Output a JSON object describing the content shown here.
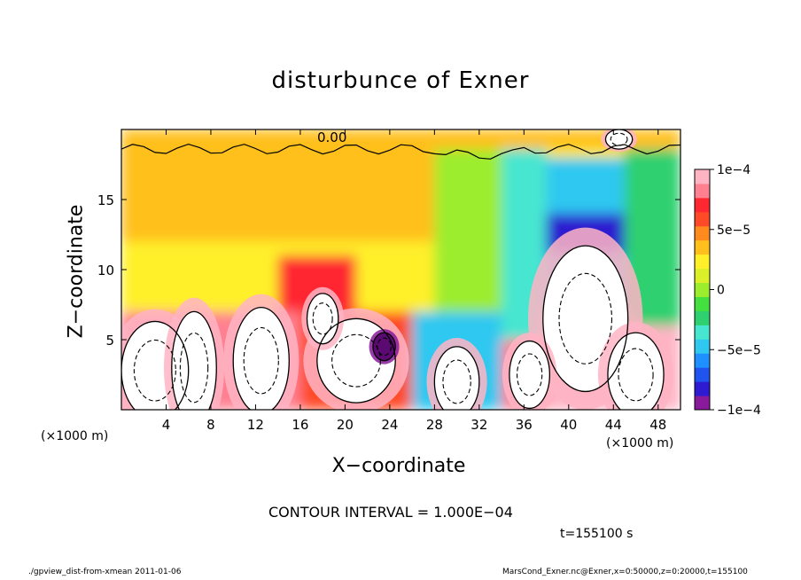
{
  "chart_data": {
    "type": "heatmap",
    "title": "disturbunce of Exner",
    "xlabel": "X−coordinate",
    "ylabel": "Z−coordinate",
    "x_unit_label": "(×1000 m)",
    "x_unit_label_right": "(×1000 m)",
    "xlim": [
      0,
      50
    ],
    "ylim": [
      0,
      20
    ],
    "x_ticks": [
      4,
      8,
      12,
      16,
      20,
      24,
      28,
      32,
      36,
      40,
      44,
      48
    ],
    "y_ticks": [
      5,
      10,
      15
    ],
    "colorbar": {
      "range": [
        -0.0001,
        0.0001
      ],
      "tick_values": [
        0.0001,
        5e-05,
        0,
        -5e-05,
        -0.0001
      ],
      "tick_labels": [
        "1e−4",
        "5e−5",
        "0",
        "−5e−5",
        "−1e−4"
      ],
      "colors": [
        "#8a1a9c",
        "#2e1ad0",
        "#1f55ee",
        "#1e90ff",
        "#2fc8f0",
        "#46e6d0",
        "#2fd070",
        "#43e040",
        "#9ced2e",
        "#dcf02a",
        "#fff02a",
        "#ffc01e",
        "#ff8a1e",
        "#ff4a28",
        "#ff2830",
        "#ff8090",
        "#ffb4c4"
      ]
    },
    "contour_interval": "CONTOUR INTERVAL = 1.000E−04",
    "contour_label": "0.00",
    "time": "t=155100 s",
    "cells": [
      {
        "x": [
          0,
          50
        ],
        "z": [
          18.6,
          20
        ],
        "v": 4e-05
      },
      {
        "x": [
          0,
          50
        ],
        "z": [
          0,
          18.6
        ],
        "v": 2e-05
      },
      {
        "x": [
          0,
          28
        ],
        "z": [
          12,
          18.6
        ],
        "v": 3e-05
      },
      {
        "x": [
          28,
          34
        ],
        "z": [
          0,
          18.6
        ],
        "v": 0.0
      },
      {
        "x": [
          34,
          38
        ],
        "z": [
          0,
          18.6
        ],
        "v": -3e-05
      },
      {
        "x": [
          38,
          45
        ],
        "z": [
          7,
          18
        ],
        "v": -5e-05
      },
      {
        "x": [
          45,
          50
        ],
        "z": [
          0,
          18.6
        ],
        "v": -2e-05
      },
      {
        "x": [
          38,
          45
        ],
        "z": [
          11,
          14
        ],
        "v": -8e-05
      },
      {
        "x": [
          20,
          25
        ],
        "z": [
          12,
          17
        ],
        "v": 3e-05
      },
      {
        "x": [
          14,
          21
        ],
        "z": [
          7,
          11
        ],
        "v": 7e-05
      },
      {
        "x": [
          0,
          14
        ],
        "z": [
          6,
          12
        ],
        "v": 2e-05
      },
      {
        "x": [
          0,
          16
        ],
        "z": [
          0,
          7
        ],
        "v": 8e-05
      },
      {
        "x": [
          16,
          26
        ],
        "z": [
          0,
          7
        ],
        "v": 6e-05
      },
      {
        "x": [
          26,
          34
        ],
        "z": [
          0,
          7
        ],
        "v": -5e-05
      },
      {
        "x": [
          34,
          38
        ],
        "z": [
          0,
          5
        ],
        "v": 8e-05
      },
      {
        "x": [
          38,
          45
        ],
        "z": [
          0,
          7
        ],
        "v": 9e-05
      },
      {
        "x": [
          45,
          50
        ],
        "z": [
          0,
          6
        ],
        "v": 9e-05
      }
    ],
    "saturated_regions": [
      {
        "cx": 3,
        "cz": 2.8,
        "rx": 3,
        "rz": 3.5,
        "v": 0.00012
      },
      {
        "cx": 6.5,
        "cz": 3,
        "rx": 2,
        "rz": 4,
        "v": 0.00012
      },
      {
        "cx": 12.5,
        "cz": 3.5,
        "rx": 2.5,
        "rz": 3.8,
        "v": 0.00012
      },
      {
        "cx": 21,
        "cz": 3.5,
        "rx": 3.5,
        "rz": 3,
        "v": 0.00012
      },
      {
        "cx": 18,
        "cz": 6.5,
        "rx": 1.4,
        "rz": 1.8,
        "v": 0.00012
      },
      {
        "cx": 30,
        "cz": 2,
        "rx": 2,
        "rz": 2.5,
        "v": 0.00012
      },
      {
        "cx": 41.5,
        "cz": 6.5,
        "rx": 3.8,
        "rz": 5.2,
        "v": 0.00012
      },
      {
        "cx": 36.5,
        "cz": 2.5,
        "rx": 1.8,
        "rz": 2.4,
        "v": 0.00012
      },
      {
        "cx": 46,
        "cz": 2.5,
        "rx": 2.5,
        "rz": 3,
        "v": 0.00012
      },
      {
        "cx": 44.5,
        "cz": 19.3,
        "rx": 1.2,
        "rz": 0.7,
        "v": 0.00012
      },
      {
        "cx": 23.5,
        "cz": 4.5,
        "rx": 1,
        "rz": 1,
        "v": -0.00012
      }
    ]
  },
  "footer": {
    "left": "./gpview_dist-from-xmean  2011-01-06",
    "right": "MarsCond_Exner.nc@Exner,x=0:50000,z=0:20000,t=155100"
  }
}
